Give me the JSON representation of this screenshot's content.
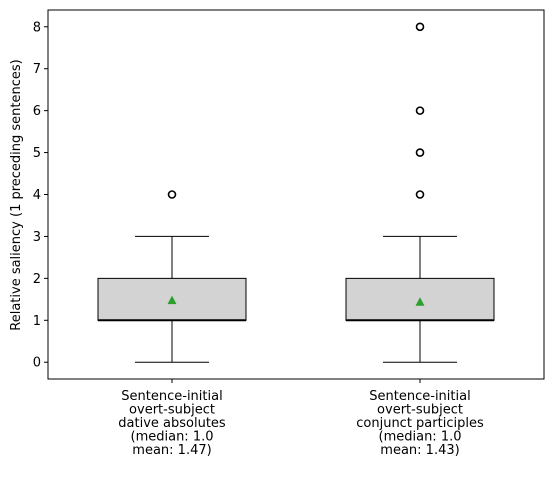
{
  "chart_data": {
    "type": "box",
    "ylabel": "Relative saliency (1 preceding sentences)",
    "xlabel": "",
    "ylim": [
      -0.4,
      8.4
    ],
    "yticks": [
      0,
      1,
      2,
      3,
      4,
      5,
      6,
      7,
      8
    ],
    "grid": false,
    "categories": [
      {
        "label_lines": [
          "Sentence-initial",
          "overt-subject",
          "dative absolutes",
          "(median: 1.0",
          "mean: 1.47)"
        ],
        "whisker_low": 0,
        "q1": 1,
        "median": 1,
        "q3": 2,
        "whisker_high": 3,
        "mean": 1.47,
        "outliers": [
          4
        ]
      },
      {
        "label_lines": [
          "Sentence-initial",
          "overt-subject",
          "conjunct participles",
          "(median: 1.0",
          "mean: 1.43)"
        ],
        "whisker_low": 0,
        "q1": 1,
        "median": 1,
        "q3": 2,
        "whisker_high": 3,
        "mean": 1.43,
        "outliers": [
          4,
          5,
          6,
          8
        ]
      }
    ],
    "colors": {
      "box_fill": "#d3d3d3",
      "box_edge": "#000000",
      "mean_marker": "#2ca02c",
      "outlier_edge": "#000000"
    }
  }
}
